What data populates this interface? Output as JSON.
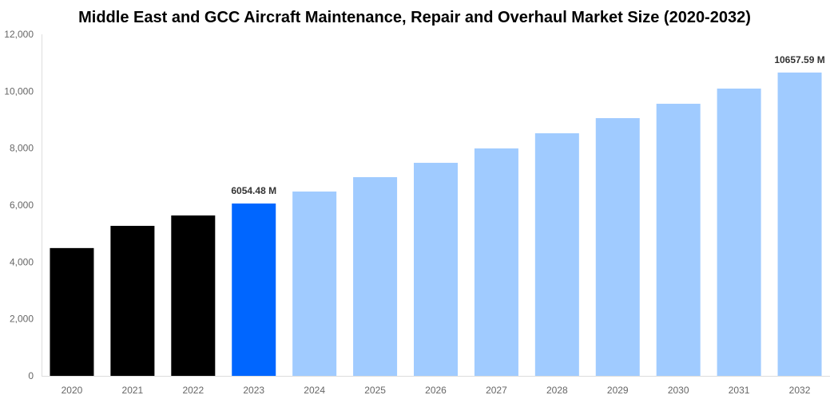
{
  "chart_data": {
    "type": "bar",
    "title": "Middle East and GCC Aircraft Maintenance, Repair and Overhaul Market Size (2020-2032)",
    "xlabel": "",
    "ylabel": "",
    "ylim": [
      0,
      12000
    ],
    "yticks": [
      "0",
      "2,000",
      "4,000",
      "6,000",
      "8,000",
      "10,000",
      "12,000"
    ],
    "ytick_values": [
      0,
      2000,
      4000,
      6000,
      8000,
      10000,
      12000
    ],
    "grid": false,
    "categories": [
      "2020",
      "2021",
      "2022",
      "2023",
      "2024",
      "2025",
      "2026",
      "2027",
      "2028",
      "2029",
      "2030",
      "2031",
      "2032"
    ],
    "values": [
      4490,
      5270,
      5635,
      6054.48,
      6476,
      6981,
      7485,
      7990,
      8523,
      9055,
      9560,
      10093,
      10657.59
    ],
    "bar_colors": [
      "#000000",
      "#000000",
      "#000000",
      "#0066ff",
      "#a0cbff",
      "#a0cbff",
      "#a0cbff",
      "#a0cbff",
      "#a0cbff",
      "#a0cbff",
      "#a0cbff",
      "#a0cbff",
      "#a0cbff"
    ],
    "data_labels": [
      {
        "category": "2023",
        "text": "6054.48 M"
      },
      {
        "category": "2032",
        "text": "10657.59 M"
      }
    ]
  }
}
